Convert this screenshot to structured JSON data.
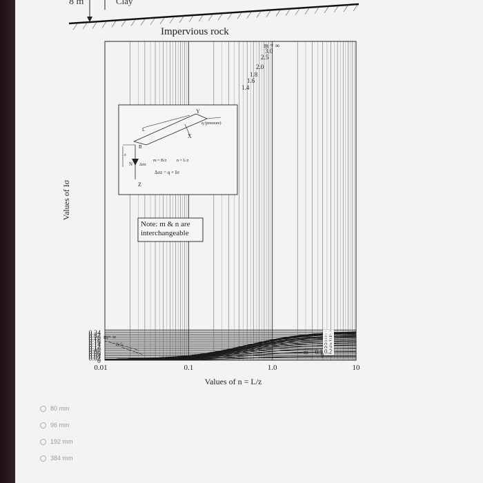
{
  "header": {
    "depth_label": "8 m",
    "layer_label": "Clay",
    "base_label": "Impervious rock"
  },
  "chart_data": {
    "type": "line",
    "title": "",
    "xlabel": "Values of n = L/z",
    "ylabel": "Values of Iσ",
    "x_scale": "log",
    "xlim": [
      0.01,
      10
    ],
    "ylim": [
      0,
      0.26
    ],
    "x_ticks": [
      "0.01",
      "0.1",
      "1.0",
      "10"
    ],
    "y_ticks": [
      "0",
      "0.02",
      "0.04",
      "0.06",
      "0.08",
      "0.10",
      "0.12",
      "0.14",
      "0.16",
      "0.18",
      "0.20",
      "0.22",
      "0.24"
    ],
    "series": [
      {
        "name": "m = ∞",
        "plateau": 0.25
      },
      {
        "name": "3.0",
        "plateau": 0.2489
      },
      {
        "name": "2.5",
        "plateau": 0.248
      },
      {
        "name": "2.0",
        "plateau": 0.2461
      },
      {
        "name": "1.8",
        "plateau": 0.2447
      },
      {
        "name": "1.6",
        "plateau": 0.2426
      },
      {
        "name": "1.4",
        "plateau": 0.2395
      },
      {
        "name": "1.2",
        "plateau": 0.2325
      },
      {
        "name": "1.0",
        "plateau": 0.2188
      },
      {
        "name": "0.9",
        "plateau": 0.2112
      },
      {
        "name": "0.8",
        "plateau": 0.2
      },
      {
        "name": "0.7",
        "plateau": 0.1862
      },
      {
        "name": "0.6",
        "plateau": 0.1695
      },
      {
        "name": "0.5",
        "plateau": 0.1525
      },
      {
        "name": "0.4",
        "plateau": 0.1315
      },
      {
        "name": "0.3",
        "plateau": 0.1035
      },
      {
        "name": "0.2",
        "plateau": 0.0734
      },
      {
        "name": "m = 0.1",
        "plateau": 0.0343
      },
      {
        "name": "0",
        "plateau": 0
      }
    ],
    "annotations": {
      "note": "Note: m & n are interchangeable",
      "lower_left_inf": "m= ∞",
      "lower_left_half": "0.5"
    }
  },
  "inset": {
    "axis_y": "Y",
    "axis_x": "X",
    "axis_z": "Z",
    "load_label": "q (pressure)",
    "length_label": "L",
    "width_label": "B",
    "depth_label": "z",
    "point_label": "N",
    "stress_label": "Δσz",
    "m_formula": "m = B/z",
    "n_formula": "n = L/z",
    "stress_formula": "Δσz = q × Iσ"
  },
  "options": [
    {
      "label": "80 mm"
    },
    {
      "label": "96 mm"
    },
    {
      "label": "192 mm"
    },
    {
      "label": "384 mm"
    }
  ]
}
